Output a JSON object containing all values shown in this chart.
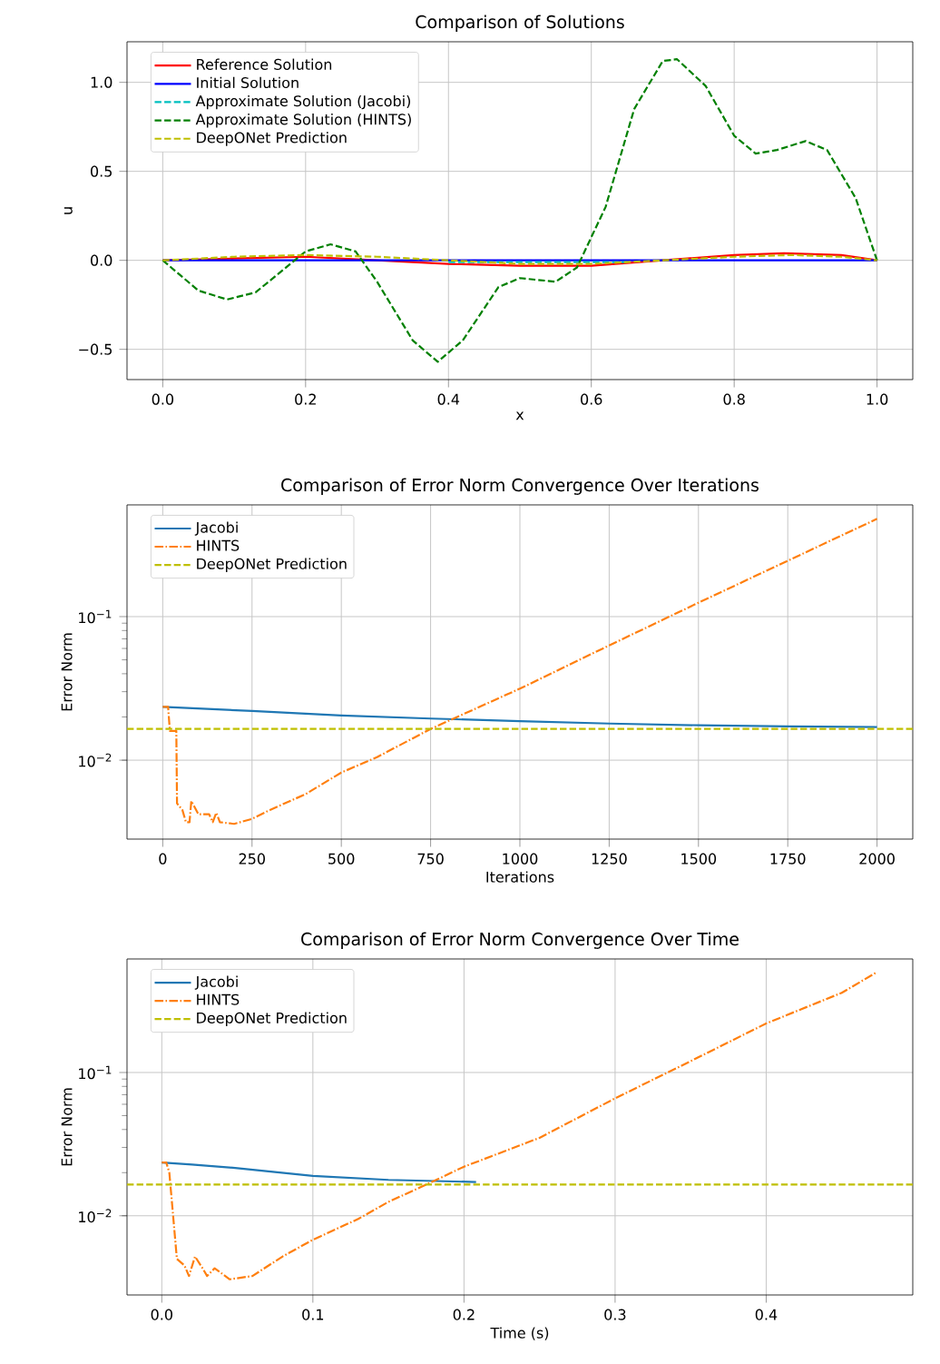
{
  "chart_data": [
    {
      "type": "line",
      "title": "Comparison of Solutions",
      "xlabel": "x",
      "ylabel": "u",
      "xlim": [
        -0.05,
        1.05
      ],
      "ylim": [
        -0.67,
        1.228
      ],
      "xticks": [
        {
          "value": 0,
          "label": "0.0"
        },
        {
          "value": 0.2,
          "label": "0.2"
        },
        {
          "value": 0.4,
          "label": "0.4"
        },
        {
          "value": 0.6,
          "label": "0.6"
        },
        {
          "value": 0.8,
          "label": "0.8"
        },
        {
          "value": 1,
          "label": "1.0"
        }
      ],
      "yticks": [
        {
          "value": -0.5,
          "label": "−0.5"
        },
        {
          "value": 0,
          "label": "0.0"
        },
        {
          "value": 0.5,
          "label": "0.5"
        },
        {
          "value": 1,
          "label": "1.0"
        }
      ],
      "grid": true,
      "legend": "top left",
      "marker": "none",
      "series": [
        {
          "name": "Reference Solution",
          "color": "#ff0000",
          "line_style": "solid",
          "x": [
            0,
            0.1,
            0.2,
            0.3,
            0.4,
            0.5,
            0.6,
            0.7,
            0.8,
            0.87,
            0.95,
            1.0
          ],
          "values": [
            0,
            0.01,
            0.02,
            0,
            -0.02,
            -0.03,
            -0.03,
            0,
            0.03,
            0.04,
            0.03,
            0
          ]
        },
        {
          "name": "Initial Solution",
          "color": "#0000ff",
          "line_style": "solid",
          "x": [
            0,
            0.5,
            1.0
          ],
          "values": [
            0,
            0,
            0
          ]
        },
        {
          "name": "Approximate Solution (Jacobi)",
          "color": "#00bfbf",
          "line_style": "dashed",
          "x": [
            0.4,
            0.45,
            0.5,
            0.55,
            0.6,
            0.65
          ],
          "values": [
            -0.01,
            -0.01,
            -0.01,
            -0.01,
            -0.01,
            -0.01
          ]
        },
        {
          "name": "Approximate Solution (HINTS)",
          "color": "#008000",
          "line_style": "dashed",
          "x": [
            0,
            0.05,
            0.09,
            0.13,
            0.2,
            0.235,
            0.27,
            0.3,
            0.35,
            0.385,
            0.42,
            0.47,
            0.5,
            0.55,
            0.58,
            0.62,
            0.66,
            0.7,
            0.72,
            0.76,
            0.8,
            0.83,
            0.86,
            0.9,
            0.93,
            0.97,
            1.0
          ],
          "values": [
            0,
            -0.17,
            -0.22,
            -0.18,
            0.05,
            0.09,
            0.05,
            -0.12,
            -0.45,
            -0.57,
            -0.45,
            -0.15,
            -0.1,
            -0.12,
            -0.04,
            0.3,
            0.85,
            1.12,
            1.13,
            0.98,
            0.7,
            0.6,
            0.62,
            0.67,
            0.62,
            0.35,
            0
          ]
        },
        {
          "name": "DeepONet Prediction",
          "color": "#bfbf00",
          "line_style": "dashed",
          "x": [
            0,
            0.1,
            0.2,
            0.3,
            0.4,
            0.5,
            0.55,
            0.6,
            0.7,
            0.8,
            0.88,
            0.95,
            1.0
          ],
          "values": [
            0,
            0.02,
            0.03,
            0.02,
            0,
            -0.02,
            -0.02,
            -0.02,
            0,
            0.02,
            0.03,
            0.02,
            0
          ]
        }
      ]
    },
    {
      "type": "line",
      "title": "Comparison of Error Norm Convergence Over Iterations",
      "xlabel": "Iterations",
      "ylabel": "Error Norm",
      "log": "y",
      "xlim": [
        -100,
        2100
      ],
      "ylim": [
        0.00282,
        0.6
      ],
      "xticks": [
        0,
        250,
        500,
        750,
        1000,
        1250,
        1500,
        1750,
        2000
      ],
      "yticks": [
        {
          "value": 0.01,
          "label": "10$^{−2}$"
        },
        {
          "value": 0.1,
          "label": "10$^{−1}$"
        }
      ],
      "grid": true,
      "legend": "top left",
      "marker": "none",
      "series": [
        {
          "name": "Jacobi",
          "color": "#1f77b4",
          "line_style": "solid",
          "x": [
            0,
            250,
            500,
            750,
            1000,
            1250,
            1500,
            1750,
            2000
          ],
          "values": [
            0.0235,
            0.022,
            0.0205,
            0.0195,
            0.0187,
            0.018,
            0.0175,
            0.0172,
            0.017
          ]
        },
        {
          "name": "HINTS",
          "color": "#ff7f0e",
          "line_style": "dashdot",
          "x": [
            0,
            15,
            20,
            38,
            40,
            55,
            65,
            75,
            80,
            100,
            130,
            140,
            150,
            160,
            200,
            250,
            300,
            400,
            500,
            600,
            750,
            1000,
            1250,
            1500,
            1750,
            2000
          ],
          "values": [
            0.0235,
            0.0235,
            0.016,
            0.016,
            0.005,
            0.0045,
            0.0037,
            0.0037,
            0.0052,
            0.0042,
            0.0042,
            0.0037,
            0.0043,
            0.0037,
            0.0036,
            0.0039,
            0.0045,
            0.0058,
            0.0082,
            0.0105,
            0.0165,
            0.0315,
            0.063,
            0.125,
            0.245,
            0.48
          ]
        }
      ],
      "ref_lines": [
        {
          "axis": "y",
          "value": 0.0165,
          "label": "DeepONet Prediction",
          "color": "#bfbf00",
          "line_style": "dashed"
        }
      ]
    },
    {
      "type": "line",
      "title": "Comparison of Error Norm Convergence Over Time",
      "xlabel": "Time (s)",
      "ylabel": "Error Norm",
      "log": "y",
      "xlim": [
        -0.023,
        0.497
      ],
      "ylim": [
        0.0028,
        0.62
      ],
      "xticks": [
        {
          "value": 0,
          "label": "0.0"
        },
        {
          "value": 0.1,
          "label": "0.1"
        },
        {
          "value": 0.2,
          "label": "0.2"
        },
        {
          "value": 0.3,
          "label": "0.3"
        },
        {
          "value": 0.4,
          "label": "0.4"
        }
      ],
      "yticks": [
        {
          "value": 0.01,
          "label": "10$^{−2}$"
        },
        {
          "value": 0.1,
          "label": "10$^{−1}$"
        }
      ],
      "grid": true,
      "legend": "top left",
      "marker": "none",
      "series": [
        {
          "name": "Jacobi",
          "color": "#1f77b4",
          "line_style": "solid",
          "x": [
            0,
            0.02,
            0.05,
            0.1,
            0.15,
            0.208
          ],
          "values": [
            0.0235,
            0.0228,
            0.0215,
            0.019,
            0.0178,
            0.0172
          ]
        },
        {
          "name": "HINTS",
          "color": "#ff7f0e",
          "line_style": "dashdot",
          "x": [
            0,
            0.003,
            0.005,
            0.01,
            0.015,
            0.018,
            0.022,
            0.027,
            0.03,
            0.035,
            0.045,
            0.06,
            0.08,
            0.1,
            0.13,
            0.15,
            0.175,
            0.2,
            0.25,
            0.3,
            0.35,
            0.4,
            0.45,
            0.473
          ],
          "values": [
            0.0235,
            0.0235,
            0.02,
            0.005,
            0.0045,
            0.0038,
            0.0052,
            0.0043,
            0.0038,
            0.0043,
            0.0036,
            0.0038,
            0.0052,
            0.0068,
            0.0095,
            0.0125,
            0.0165,
            0.022,
            0.035,
            0.066,
            0.12,
            0.22,
            0.36,
            0.5
          ]
        }
      ],
      "ref_lines": [
        {
          "axis": "y",
          "value": 0.0165,
          "label": "DeepONet Prediction",
          "color": "#bfbf00",
          "line_style": "dashed"
        }
      ]
    }
  ]
}
